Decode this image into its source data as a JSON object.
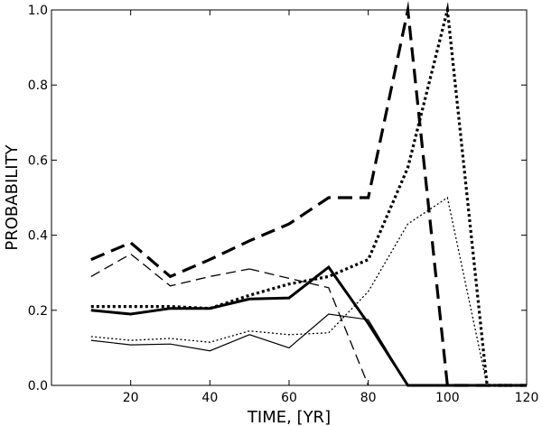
{
  "chart_data": {
    "type": "line",
    "title": "",
    "xlabel": "TIME, [YR]",
    "ylabel": "PROBABILITY",
    "xlim": [
      0,
      120
    ],
    "ylim": [
      0.0,
      1.0
    ],
    "xticks": [
      20,
      40,
      60,
      80,
      100,
      120
    ],
    "yticks": [
      0.0,
      0.2,
      0.4,
      0.6,
      0.8,
      1.0
    ],
    "xtick_labels": [
      "20",
      "40",
      "60",
      "80",
      "100",
      "120"
    ],
    "ytick_labels": [
      "0.0",
      "0.2",
      "0.4",
      "0.6",
      "0.8",
      "1.0"
    ],
    "grid": false,
    "series": [
      {
        "name": "thick dashed",
        "style": "dashed",
        "weight": "thick",
        "x": [
          10,
          20,
          30,
          40,
          50,
          60,
          70,
          80,
          90,
          100,
          110,
          120
        ],
        "values": [
          0.335,
          0.38,
          0.29,
          0.335,
          0.385,
          0.43,
          0.5,
          0.5,
          1.0,
          0.0,
          0.0,
          0.0
        ]
      },
      {
        "name": "thick dotted",
        "style": "dotted",
        "weight": "thick",
        "x": [
          10,
          20,
          30,
          40,
          50,
          60,
          70,
          80,
          90,
          100,
          110,
          120
        ],
        "values": [
          0.21,
          0.21,
          0.21,
          0.205,
          0.24,
          0.27,
          0.29,
          0.335,
          0.58,
          1.0,
          0.0,
          0.0
        ]
      },
      {
        "name": "thick solid",
        "style": "solid",
        "weight": "thick",
        "x": [
          10,
          20,
          30,
          40,
          50,
          60,
          70,
          80,
          90,
          100,
          110,
          120
        ],
        "values": [
          0.2,
          0.19,
          0.205,
          0.205,
          0.23,
          0.233,
          0.315,
          0.165,
          0.0,
          0.0,
          0.0,
          0.0
        ]
      },
      {
        "name": "thin dashed",
        "style": "dashed",
        "weight": "thin",
        "x": [
          10,
          20,
          30,
          40,
          50
        ],
        "values": [
          0.29,
          0.35,
          0.265,
          0.29,
          0.31
        ]
      },
      {
        "name": "thin dashed (tail)",
        "style": "dashed",
        "weight": "thin",
        "x": [
          50,
          60,
          70,
          80
        ],
        "values": [
          0.31,
          0.285,
          0.26,
          0.0
        ]
      },
      {
        "name": "thin dotted",
        "style": "dotted",
        "weight": "thin",
        "x": [
          10,
          20,
          30,
          40,
          50,
          60,
          70,
          80,
          90,
          100,
          110,
          120
        ],
        "values": [
          0.13,
          0.12,
          0.125,
          0.115,
          0.145,
          0.135,
          0.14,
          0.25,
          0.43,
          0.5,
          0.0,
          0.0
        ]
      },
      {
        "name": "thin solid",
        "style": "solid",
        "weight": "thin",
        "x": [
          10,
          20,
          30,
          40,
          50,
          60,
          70,
          80,
          90,
          100,
          110,
          120
        ],
        "values": [
          0.12,
          0.108,
          0.11,
          0.092,
          0.135,
          0.1,
          0.19,
          0.175,
          0.0,
          0.0,
          0.0,
          0.0
        ]
      }
    ]
  }
}
